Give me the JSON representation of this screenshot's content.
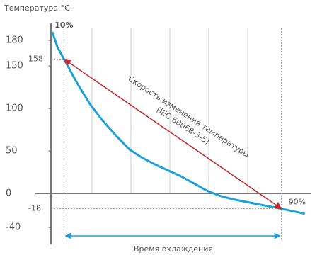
{
  "chart_data": {
    "type": "line",
    "y_axis_label": "Температура °C",
    "annotation": [
      "Скорость изменения температуры",
      "(IEC 60068-3-5)"
    ],
    "x_axis_label": "Время охлаждения",
    "xlim": [
      0,
      20
    ],
    "ylim": [
      -60,
      200
    ],
    "yticks": [
      180,
      150,
      100,
      50,
      0,
      -40
    ],
    "series": [
      {
        "name": "",
        "color": "#1ea0d8",
        "x": [
          0.1,
          0.5,
          1,
          2,
          3,
          4,
          5,
          6,
          7,
          8,
          10,
          12,
          13,
          14,
          16,
          17.7,
          19.5
        ],
        "values": [
          190,
          172,
          158,
          130,
          105,
          85,
          68,
          52,
          42,
          34,
          20,
          3,
          -3,
          -7,
          -13,
          -18,
          -24
        ]
      }
    ],
    "markers": [
      {
        "label": "10%",
        "x": 1,
        "value": 158
      },
      {
        "label": "90%",
        "x": 17.7,
        "value": -18
      }
    ],
    "arrow_color": "#c1272d"
  }
}
